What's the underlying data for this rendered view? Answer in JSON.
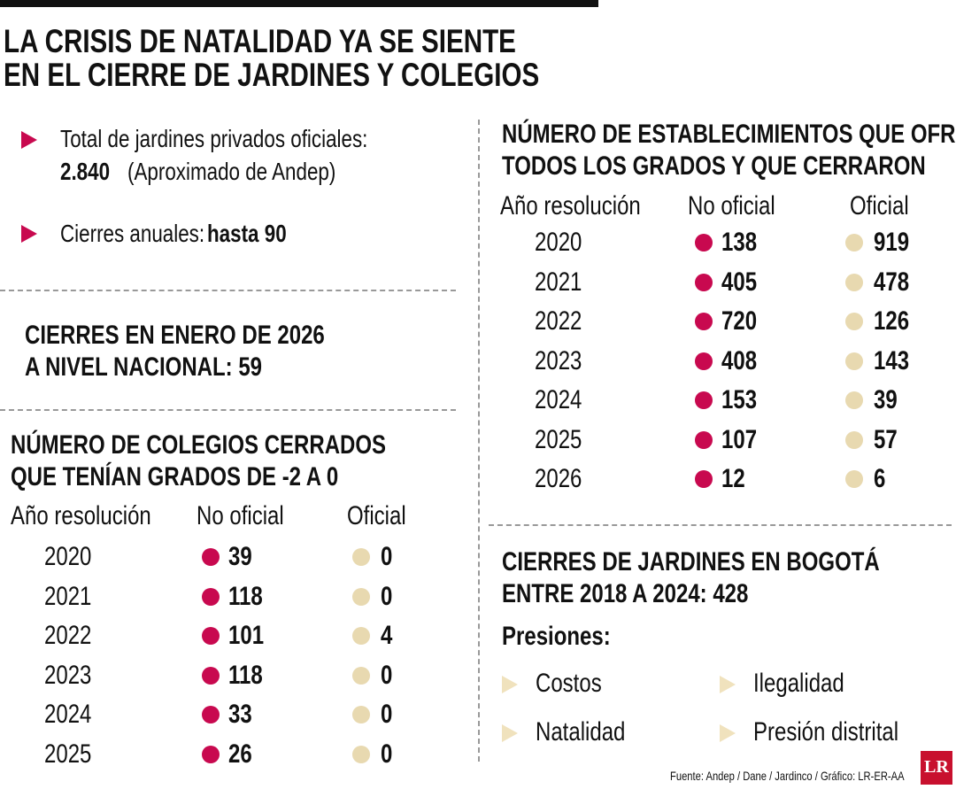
{
  "header": {
    "title_lines": [
      "LA CRISIS DE NATALIDAD YA SE SIENTE",
      "EN EL CIERRE DE JARDINES Y COLEGIOS"
    ]
  },
  "facts": [
    {
      "label": "Total de jardines privados oficiales:",
      "value": "2.840",
      "note": "(Aproximado de Andep)"
    },
    {
      "label": "Cierres anuales:",
      "value": "hasta 90"
    }
  ],
  "january": {
    "title_lines": [
      "CIERRES EN ENERO DE 2026",
      "A NIVEL NACIONAL: 59"
    ]
  },
  "colegios": {
    "title_lines": [
      "NÚMERO DE COLEGIOS CERRADOS",
      "QUE TENÍAN GRADOS DE -2 A 0"
    ],
    "columns": [
      "Año resolución",
      "No oficial",
      "Oficial"
    ],
    "rows": [
      [
        "2020",
        39,
        0
      ],
      [
        "2021",
        118,
        0
      ],
      [
        "2022",
        101,
        4
      ],
      [
        "2023",
        118,
        0
      ],
      [
        "2024",
        33,
        0
      ],
      [
        "2025",
        26,
        0
      ]
    ]
  },
  "establecimientos": {
    "title_lines": [
      "NÚMERO DE ESTABLECIMIENTOS QUE OFRECEN",
      "TODOS LOS GRADOS Y QUE CERRARON"
    ],
    "columns": [
      "Año resolución",
      "No oficial",
      "Oficial"
    ],
    "rows": [
      [
        "2020",
        138,
        919
      ],
      [
        "2021",
        405,
        478
      ],
      [
        "2022",
        720,
        126
      ],
      [
        "2023",
        408,
        143
      ],
      [
        "2024",
        153,
        39
      ],
      [
        "2025",
        107,
        57
      ],
      [
        "2026",
        12,
        6
      ]
    ]
  },
  "bogota": {
    "title_lines": [
      "CIERRES DE JARDINES EN BOGOTÁ",
      "ENTRE 2018 A 2024: 428"
    ],
    "subtitle": "Presiones:",
    "items": [
      "Costos",
      "Ilegalidad",
      "Natalidad",
      "Presión distrital"
    ]
  },
  "source": "Fuente: Andep / Dane / Jardinco / Gráfico: LR-ER-AA",
  "logo": "LR"
}
